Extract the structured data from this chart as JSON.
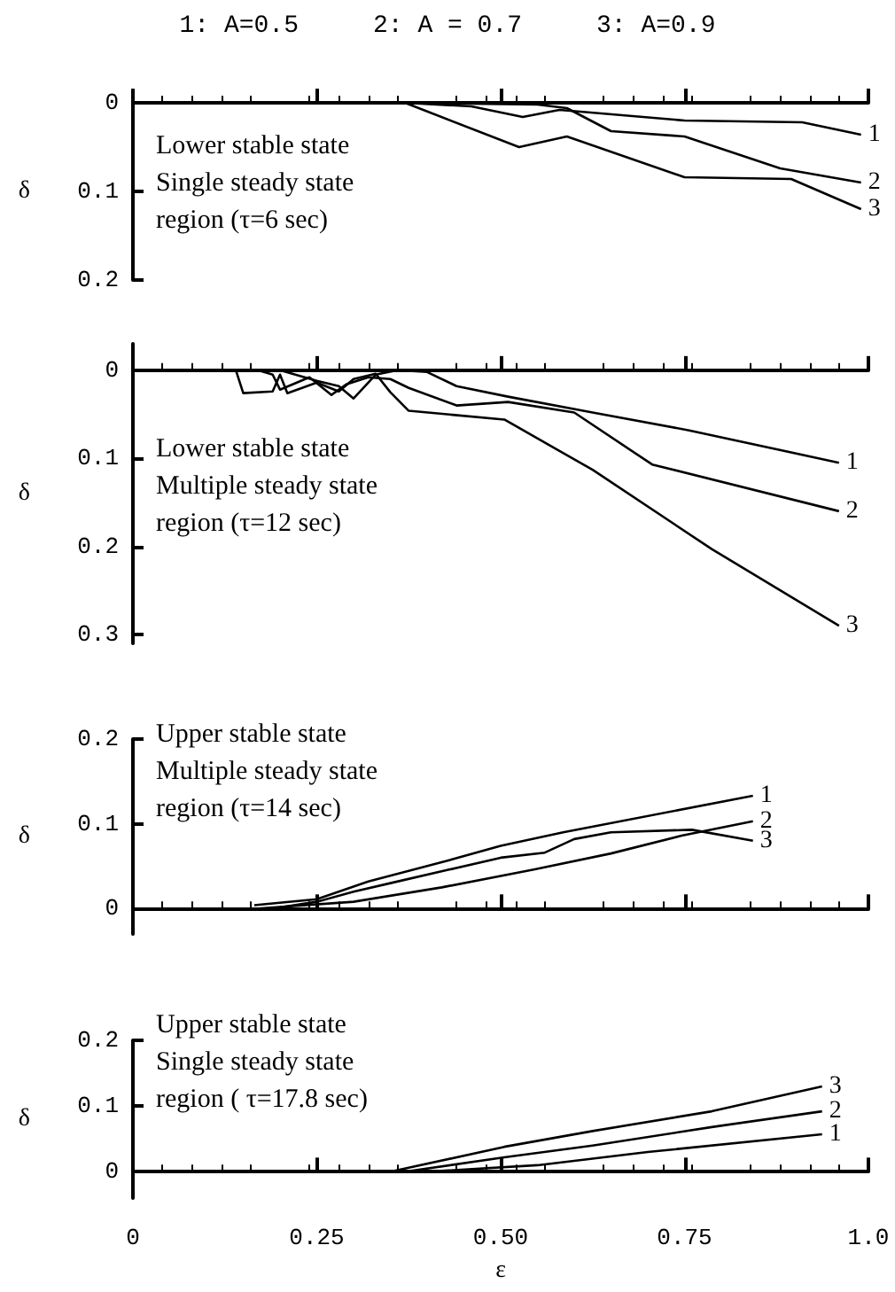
{
  "chart_data": [
    {
      "type": "line",
      "title": "Lower stable state\nSingle steady state\nregion (τ=6 sec)",
      "ylabel": "δ",
      "annotations": [
        "1: A=0.5     2: A = 0.7     3: A=0.9"
      ],
      "xlim": [
        0,
        1
      ],
      "xticks": [
        {
          "value": 0,
          "label": null
        },
        {
          "value": 0.25,
          "label": null
        },
        {
          "value": 0.5,
          "label": null
        },
        {
          "value": 0.75,
          "label": null
        },
        {
          "value": 1,
          "label": null
        }
      ],
      "ylim": [
        0.2,
        0
      ],
      "yticks": [
        0,
        0.1,
        0.2
      ],
      "tick_labels": "y",
      "marker": "none",
      "line_style": "solid",
      "series": [
        {
          "name": "1",
          "color": "#000000",
          "x": [
            0.37,
            0.46,
            0.53,
            0.58,
            0.75,
            0.91,
            0.99
          ],
          "values": [
            0,
            0.004,
            0.016,
            0.008,
            0.02,
            0.022,
            0.036
          ]
        },
        {
          "name": "2",
          "color": "#000000",
          "x": [
            0.37,
            0.55,
            0.59,
            0.65,
            0.75,
            0.88,
            0.99
          ],
          "values": [
            0,
            0.002,
            0.006,
            0.032,
            0.038,
            0.074,
            0.09
          ]
        },
        {
          "name": "3",
          "color": "#000000",
          "x": [
            0.37,
            0.525,
            0.59,
            0.75,
            0.895,
            0.99
          ],
          "values": [
            0,
            0.05,
            0.038,
            0.084,
            0.086,
            0.12
          ]
        }
      ]
    },
    {
      "type": "line",
      "title": "Lower stable state\nMultiple steady state\nregion (τ=12 sec)",
      "ylabel": "δ",
      "xlim": [
        0,
        1
      ],
      "xticks": [
        {
          "value": 0,
          "label": null
        },
        {
          "value": 0.25,
          "label": null
        },
        {
          "value": 0.5,
          "label": null
        },
        {
          "value": 0.75,
          "label": null
        },
        {
          "value": 1,
          "label": null
        }
      ],
      "ylim": [
        0.31,
        -0.03
      ],
      "yticks": [
        0,
        0.1,
        0.2,
        0.3
      ],
      "tick_labels": "y",
      "marker": "none",
      "line_style": "solid",
      "series": [
        {
          "name": "1",
          "color": "#000000",
          "x": [
            0.2,
            0.25,
            0.28,
            0.3,
            0.33,
            0.36,
            0.4,
            0.44,
            0.51,
            0.625,
            0.755,
            0.96
          ],
          "values": [
            0,
            0.012,
            0.018,
            0.032,
            0.005,
            0,
            0.002,
            0.018,
            0.03,
            0.048,
            0.068,
            0.105
          ]
        },
        {
          "name": "2",
          "color": "#000000",
          "x": [
            0.17,
            0.19,
            0.2,
            0.24,
            0.27,
            0.29,
            0.32,
            0.35,
            0.375,
            0.44,
            0.51,
            0.6,
            0.706,
            0.96
          ],
          "values": [
            0,
            0.005,
            0.022,
            0.008,
            0.028,
            0.016,
            0.008,
            0.01,
            0.02,
            0.04,
            0.036,
            0.048,
            0.107,
            0.16
          ]
        },
        {
          "name": "3",
          "color": "#000000",
          "x": [
            0.14,
            0.15,
            0.19,
            0.2,
            0.21,
            0.25,
            0.28,
            0.3,
            0.33,
            0.35,
            0.375,
            0.505,
            0.625,
            0.787,
            0.96
          ],
          "values": [
            0,
            0.026,
            0.024,
            0.005,
            0.026,
            0.014,
            0.024,
            0.01,
            0.004,
            0.025,
            0.046,
            0.056,
            0.113,
            0.203,
            0.29
          ]
        }
      ]
    },
    {
      "type": "line",
      "title": "Upper stable state\nMultiple steady state\nregion (τ=14 sec)",
      "ylabel": "δ",
      "xlim": [
        0,
        1
      ],
      "xticks": [
        {
          "value": 0,
          "label": null
        },
        {
          "value": 0.25,
          "label": null
        },
        {
          "value": 0.5,
          "label": null
        },
        {
          "value": 0.75,
          "label": null
        },
        {
          "value": 1,
          "label": null
        }
      ],
      "ylim": [
        -0.03,
        0.2
      ],
      "yticks": [
        0,
        0.1,
        0.2
      ],
      "tick_labels": "y",
      "marker": "none",
      "line_style": "solid",
      "series": [
        {
          "name": "1",
          "color": "#000000",
          "x": [
            0.165,
            0.25,
            0.32,
            0.43,
            0.5,
            0.585,
            0.843
          ],
          "values": [
            0.004,
            0.011,
            0.032,
            0.057,
            0.074,
            0.09,
            0.133
          ]
        },
        {
          "name": "2",
          "color": "#000000",
          "x": [
            0.17,
            0.3,
            0.42,
            0.545,
            0.65,
            0.746,
            0.843
          ],
          "values": [
            0,
            0.008,
            0.025,
            0.046,
            0.065,
            0.086,
            0.103
          ]
        },
        {
          "name": "3",
          "color": "#000000",
          "x": [
            0.19,
            0.25,
            0.3,
            0.35,
            0.43,
            0.5,
            0.56,
            0.6,
            0.65,
            0.76,
            0.843
          ],
          "values": [
            0,
            0.008,
            0.02,
            0.03,
            0.046,
            0.06,
            0.066,
            0.082,
            0.09,
            0.093,
            0.08
          ]
        }
      ]
    },
    {
      "type": "line",
      "title": "Upper stable state\nSingle steady state\nregion ( τ=17.8 sec)",
      "ylabel": "δ",
      "xlabel": "ε",
      "xlim": [
        0,
        1
      ],
      "xticks": [
        {
          "value": 0,
          "label": "0"
        },
        {
          "value": 0.25,
          "label": "0.25"
        },
        {
          "value": 0.5,
          "label": "0.50"
        },
        {
          "value": 0.75,
          "label": "0.75"
        },
        {
          "value": 1,
          "label": "1.0"
        }
      ],
      "ylim": [
        -0.04,
        0.2
      ],
      "yticks": [
        0,
        0.1,
        0.2
      ],
      "marker": "none",
      "line_style": "solid",
      "series": [
        {
          "name": "1",
          "color": "#000000",
          "x": [
            0.4,
            0.55,
            0.7,
            0.937
          ],
          "values": [
            0,
            0.01,
            0.03,
            0.057
          ]
        },
        {
          "name": "2",
          "color": "#000000",
          "x": [
            0.37,
            0.505,
            0.625,
            0.787,
            0.937
          ],
          "values": [
            0,
            0.022,
            0.04,
            0.068,
            0.092
          ]
        },
        {
          "name": "3",
          "color": "#000000",
          "x": [
            0.35,
            0.505,
            0.625,
            0.787,
            0.937
          ],
          "values": [
            0,
            0.038,
            0.062,
            0.092,
            0.13
          ]
        }
      ]
    }
  ]
}
